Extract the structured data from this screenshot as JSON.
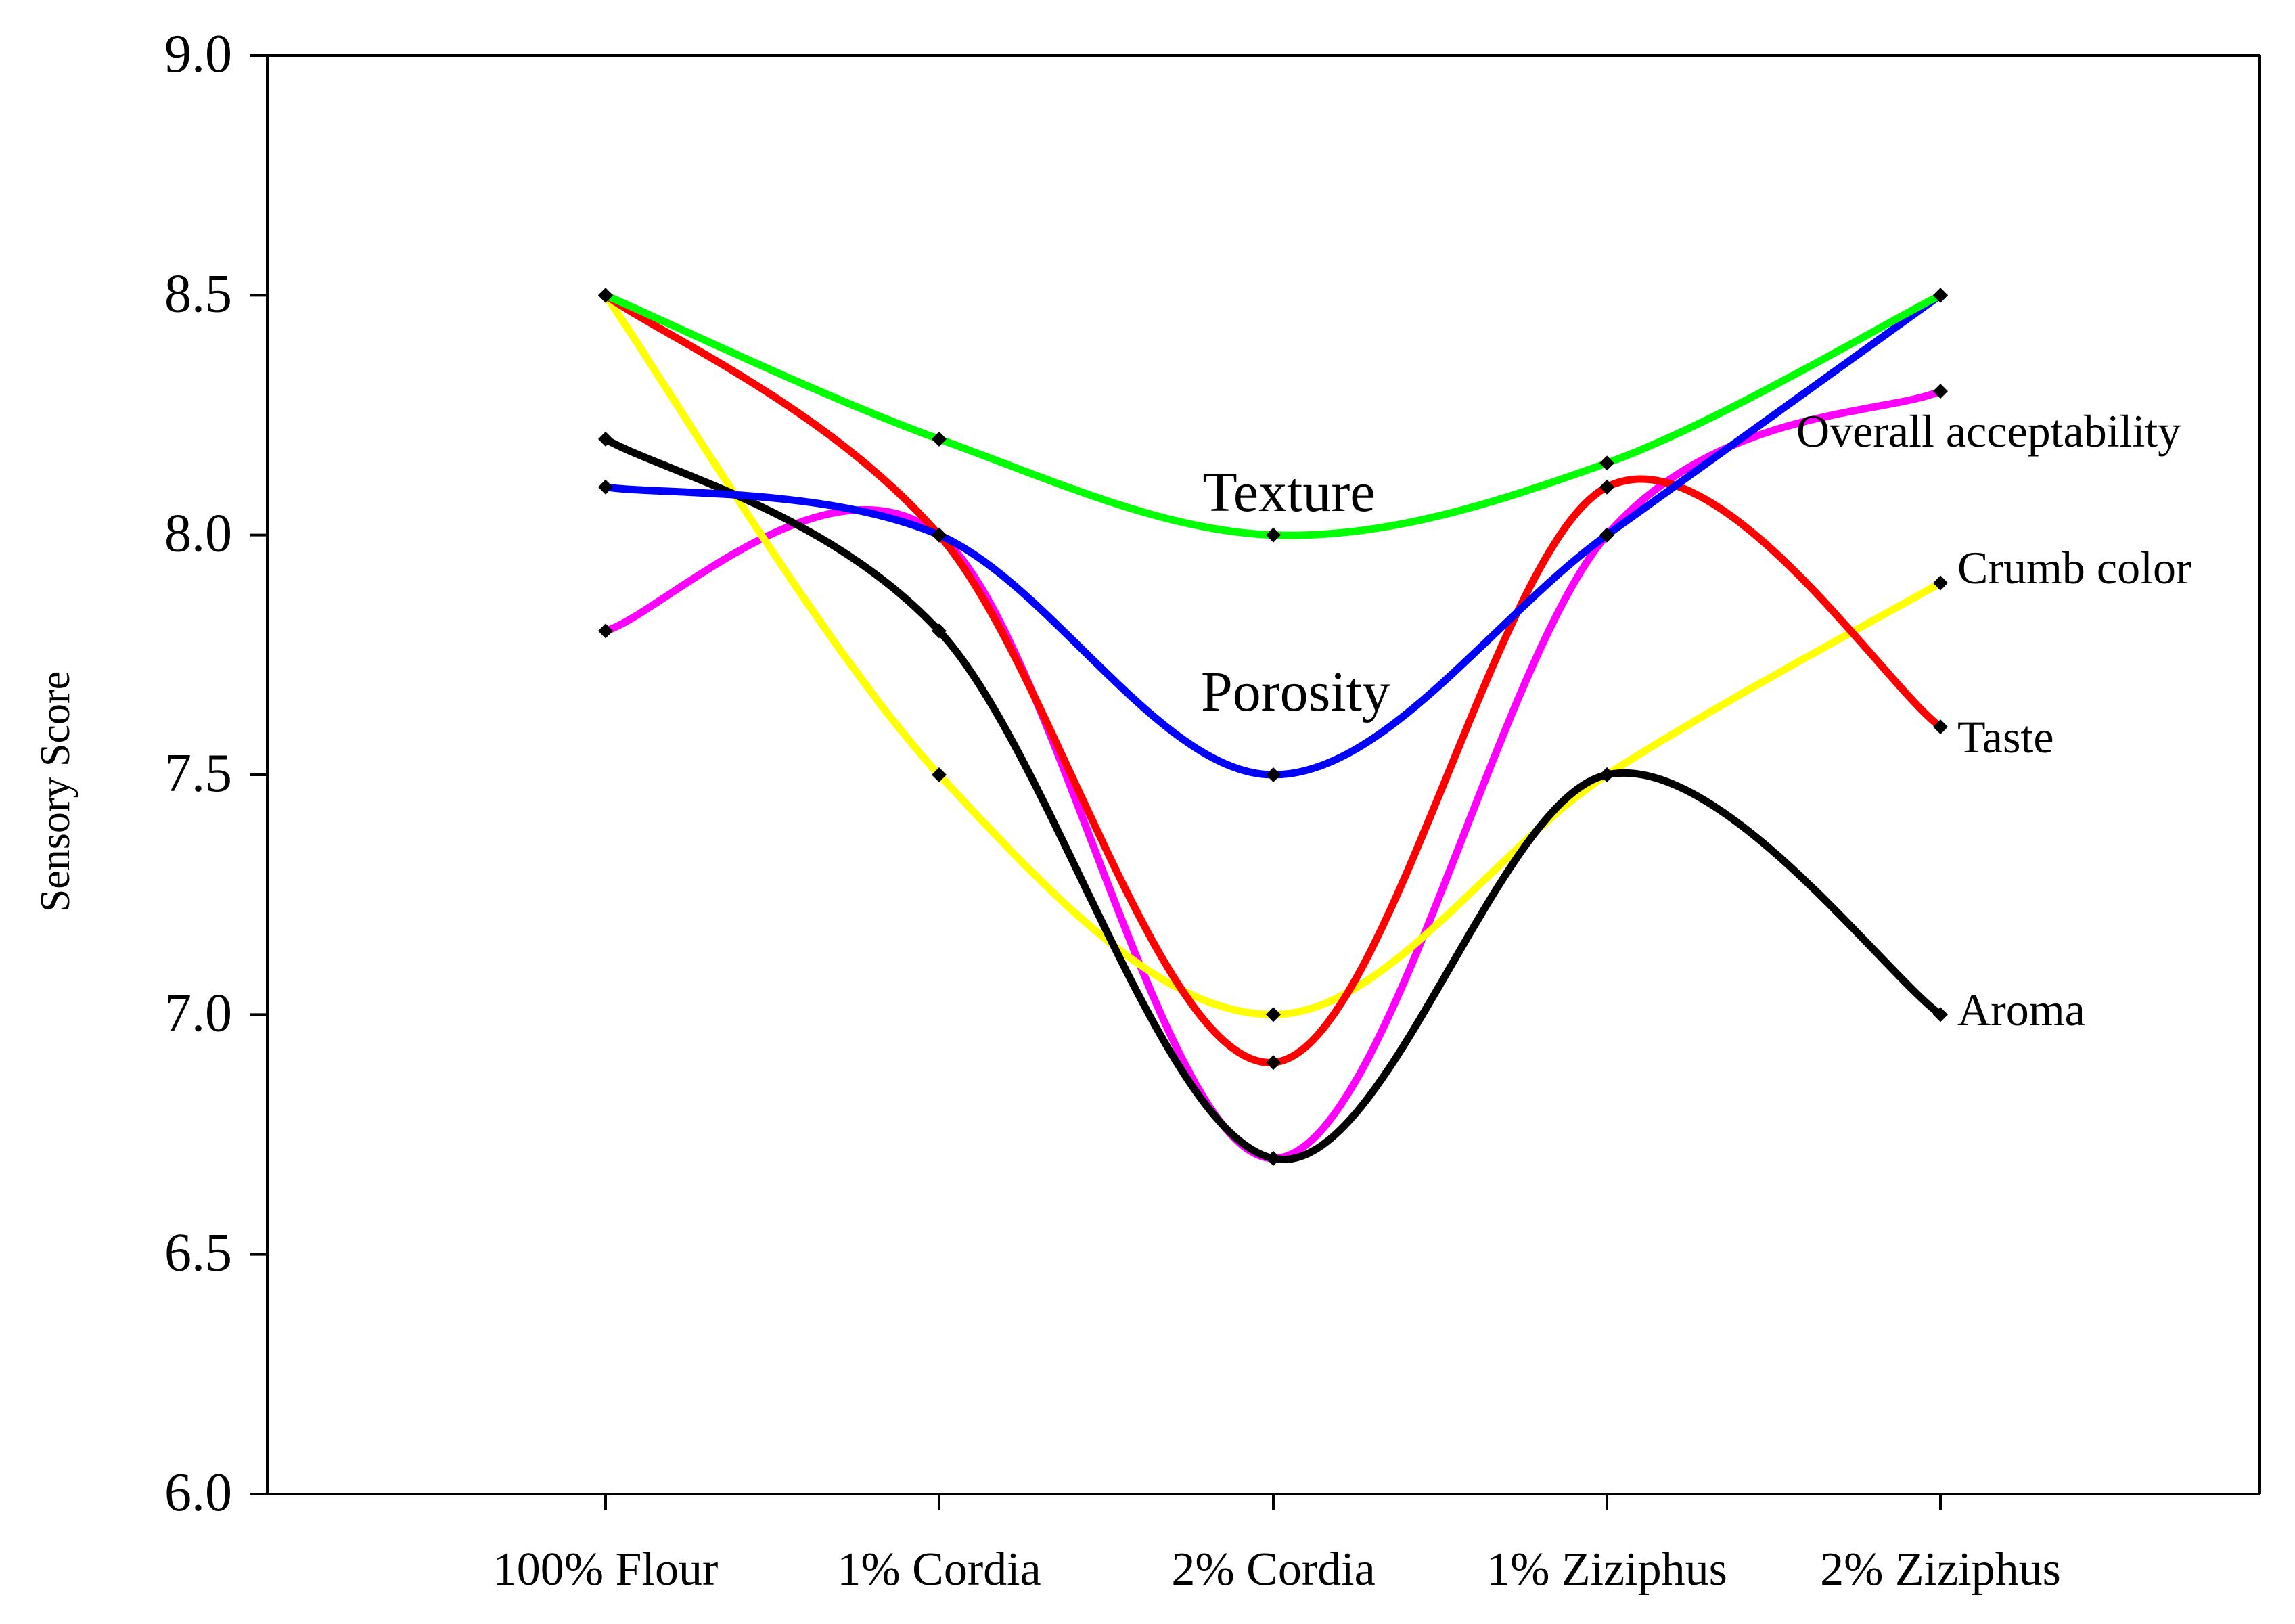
{
  "chart_data": {
    "type": "line",
    "title": "",
    "xlabel": "",
    "ylabel": "Sensory Score",
    "ylim": [
      6.0,
      9.0
    ],
    "yticks": [
      "6.0",
      "6.5",
      "7.0",
      "7.5",
      "8.0",
      "8.5",
      "9.0"
    ],
    "categories": [
      "100% Flour",
      "1% Cordia",
      "2% Cordia",
      "1% Ziziphus",
      "2% Ziziphus"
    ],
    "grid": false,
    "legend": "none (series labeled inline)",
    "series": [
      {
        "name": "Overall acceptability",
        "color": "#ff00ff",
        "values": [
          7.8,
          8.0,
          6.7,
          8.0,
          8.3
        ]
      },
      {
        "name": "Crumb color",
        "color": "#ffff00",
        "values": [
          8.5,
          7.5,
          7.0,
          7.5,
          7.9
        ]
      },
      {
        "name": "Taste",
        "color": "#ff0000",
        "values": [
          8.5,
          8.0,
          6.9,
          8.1,
          7.6
        ]
      },
      {
        "name": "Aroma",
        "color": "#000000",
        "values": [
          8.2,
          7.8,
          6.7,
          7.5,
          7.0
        ]
      },
      {
        "name": "Porosity",
        "color": "#0000ff",
        "values": [
          8.1,
          8.0,
          7.5,
          8.0,
          8.5
        ]
      },
      {
        "name": "Texture",
        "color": "#00ff00",
        "values": [
          8.5,
          8.2,
          8.0,
          8.15,
          8.5
        ]
      }
    ]
  }
}
